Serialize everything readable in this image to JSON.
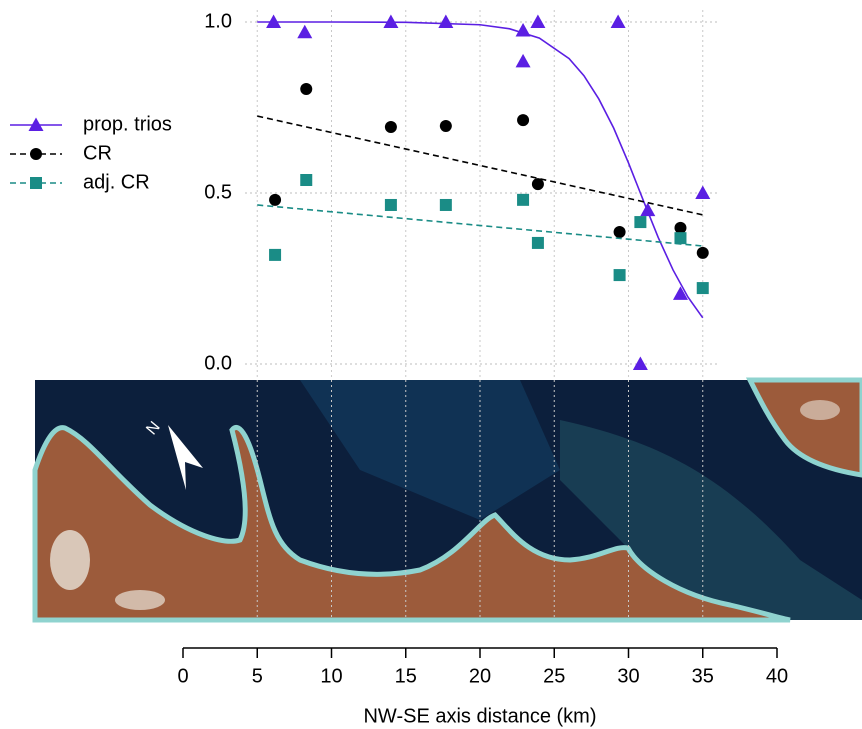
{
  "chart_data": {
    "type": "scatter",
    "xlabel": "NW-SE axis distance (km)",
    "xlim": [
      0,
      40
    ],
    "xticks": [
      0,
      5,
      10,
      15,
      20,
      25,
      30,
      35,
      40
    ],
    "ylim": [
      0,
      1
    ],
    "yticks": [
      {
        "value": 0,
        "label": "0.0"
      },
      {
        "value": 0.5,
        "label": "0.5"
      },
      {
        "value": 1,
        "label": "1.0"
      }
    ],
    "grid": true,
    "legend": "left",
    "series": [
      {
        "name": "prop. trios",
        "color": "#5b1fe3",
        "marker": "triangle",
        "x": [
          6.1,
          8.2,
          14.0,
          17.7,
          22.9,
          22.9,
          23.9,
          29.3,
          31.3,
          30.8,
          33.5,
          35.0
        ],
        "values": [
          1.0,
          0.97,
          1.0,
          1.0,
          0.975,
          0.885,
          1.0,
          1.0,
          0.45,
          0.0,
          0.205,
          0.5
        ],
        "fit": {
          "line_style": "solid",
          "x": [
            5,
            10,
            15,
            20,
            22,
            24,
            26,
            27,
            28,
            29,
            30,
            31,
            32,
            33,
            34,
            35
          ],
          "values": [
            1.0,
            1.0,
            0.999,
            0.992,
            0.98,
            0.953,
            0.893,
            0.843,
            0.775,
            0.69,
            0.588,
            0.478,
            0.37,
            0.275,
            0.196,
            0.135
          ]
        }
      },
      {
        "name": "CR",
        "color": "#000000",
        "marker": "circle",
        "x": [
          6.2,
          8.3,
          14.0,
          17.7,
          22.9,
          23.9,
          29.4,
          33.5,
          35.0
        ],
        "values": [
          0.48,
          0.804,
          0.693,
          0.696,
          0.713,
          0.526,
          0.386,
          0.398,
          0.325
        ],
        "fit": {
          "line_style": "dashed",
          "x": [
            5,
            35
          ],
          "values": [
            0.725,
            0.436
          ]
        }
      },
      {
        "name": "adj. CR",
        "color": "#1a8c86",
        "marker": "square",
        "x": [
          6.2,
          8.3,
          14.0,
          17.7,
          22.9,
          23.9,
          29.4,
          30.8,
          33.5,
          35.0
        ],
        "values": [
          0.319,
          0.538,
          0.465,
          0.465,
          0.48,
          0.354,
          0.26,
          0.415,
          0.368,
          0.222
        ],
        "fit": {
          "line_style": "dashed",
          "x": [
            5,
            35
          ],
          "values": [
            0.465,
            0.345
          ]
        }
      }
    ]
  }
}
